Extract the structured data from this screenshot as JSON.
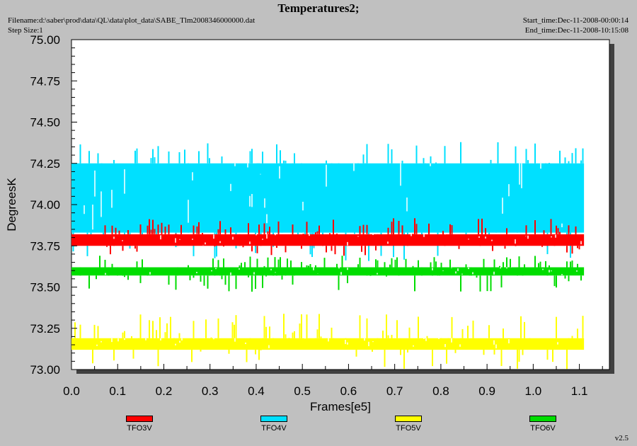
{
  "header": {
    "title": "Temperatures2;",
    "filename": "Filename:d:\\saber\\prod\\data\\QL\\data\\plot_data\\SABE_Tlm2008346000000.dat",
    "step_size": "Step Size:1",
    "start_time": "Start_time:Dec-11-2008-00:00:14",
    "end_time": "End_time:Dec-11-2008-10:15:08",
    "version": "v2.5"
  },
  "chart_data": {
    "type": "line",
    "xlabel": "Frames[e5]",
    "ylabel": "DegreesK",
    "xlim": [
      0.0,
      1.165
    ],
    "ylim": [
      73.0,
      75.0
    ],
    "x_ticks": [
      "0.0",
      "0.1",
      "0.2",
      "0.3",
      "0.4",
      "0.5",
      "0.6",
      "0.7",
      "0.8",
      "0.9",
      "1.0",
      "1.1"
    ],
    "y_ticks": [
      "73.00",
      "73.25",
      "73.50",
      "73.75",
      "74.00",
      "74.25",
      "74.50",
      "74.75",
      "75.00"
    ],
    "grid": false,
    "legend_position": "bottom",
    "series": [
      {
        "name": "TFO3V",
        "color": "#ff0000",
        "x_range": [
          0.0,
          1.11
        ],
        "band": [
          73.75,
          73.82
        ],
        "spike_high": 73.92,
        "spike_low": 73.69
      },
      {
        "name": "TFO4V",
        "color": "#00e0ff",
        "x_range": [
          0.0,
          1.11
        ],
        "band": [
          73.83,
          74.25
        ],
        "spike_high": 74.38,
        "spike_low": 73.65
      },
      {
        "name": "TFO5V",
        "color": "#ffff00",
        "x_range": [
          0.0,
          1.11
        ],
        "band": [
          73.12,
          73.19
        ],
        "spike_high": 73.34,
        "spike_low": 73.0
      },
      {
        "name": "TFO6V",
        "color": "#00dd00",
        "x_range": [
          0.0,
          1.11
        ],
        "band": [
          73.57,
          73.62
        ],
        "spike_high": 73.69,
        "spike_low": 73.47
      }
    ]
  }
}
